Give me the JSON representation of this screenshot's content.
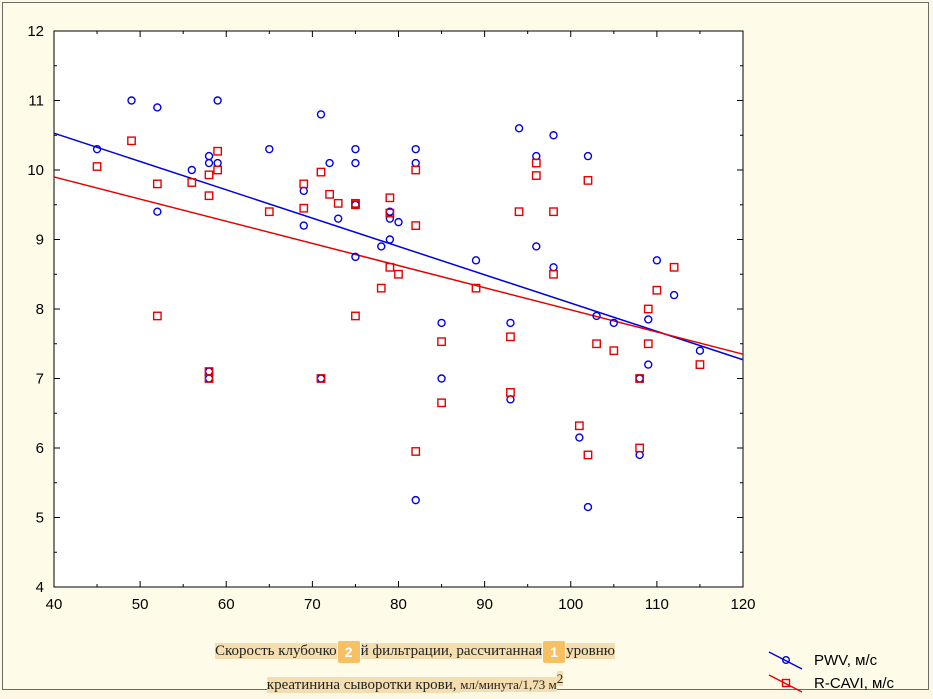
{
  "chart_data": {
    "type": "scatter",
    "xlim": [
      40,
      120
    ],
    "ylim": [
      4,
      12
    ],
    "x_ticks": [
      40,
      50,
      60,
      70,
      80,
      90,
      100,
      110,
      120
    ],
    "y_ticks": [
      4,
      5,
      6,
      7,
      8,
      9,
      10,
      11,
      12
    ],
    "grid": false,
    "legend_position": "bottom-right",
    "caption": {
      "part1": "Скорость клубочко",
      "part2": "й фильтрации, рассчитанная",
      "part3": "уровню",
      "line2_part1": "креатинина сыворотки крови, ",
      "line2_part2": "мл/минута/1,73 м",
      "line2_sup": "2"
    },
    "badges": [
      "2",
      "1"
    ],
    "series": [
      {
        "name": "PWV, м/с",
        "color": "#0000e6",
        "marker": "circle",
        "points": [
          [
            45,
            10.3
          ],
          [
            49,
            11.0
          ],
          [
            52,
            10.9
          ],
          [
            52,
            9.4
          ],
          [
            56,
            10.0
          ],
          [
            58,
            10.2
          ],
          [
            58,
            10.1
          ],
          [
            59,
            11.0
          ],
          [
            59,
            10.1
          ],
          [
            58,
            7.1
          ],
          [
            58,
            7.0
          ],
          [
            65,
            10.3
          ],
          [
            69,
            9.7
          ],
          [
            69,
            9.2
          ],
          [
            71,
            10.8
          ],
          [
            71,
            7.0
          ],
          [
            72,
            10.1
          ],
          [
            73,
            9.3
          ],
          [
            75,
            10.3
          ],
          [
            75,
            10.1
          ],
          [
            75,
            9.5
          ],
          [
            75,
            8.75
          ],
          [
            78,
            8.9
          ],
          [
            79,
            9.3
          ],
          [
            79,
            9.0
          ],
          [
            79,
            9.4
          ],
          [
            80,
            9.25
          ],
          [
            82,
            10.3
          ],
          [
            82,
            10.1
          ],
          [
            82,
            5.25
          ],
          [
            85,
            7.8
          ],
          [
            85,
            7.0
          ],
          [
            89,
            8.7
          ],
          [
            93,
            7.8
          ],
          [
            93,
            6.7
          ],
          [
            94,
            10.6
          ],
          [
            96,
            10.2
          ],
          [
            96,
            8.9
          ],
          [
            98,
            10.5
          ],
          [
            98,
            8.6
          ],
          [
            101,
            6.15
          ],
          [
            102,
            10.2
          ],
          [
            102,
            5.15
          ],
          [
            103,
            7.9
          ],
          [
            105,
            7.8
          ],
          [
            108,
            7.0
          ],
          [
            108,
            5.9
          ],
          [
            109,
            7.85
          ],
          [
            109,
            7.2
          ],
          [
            110,
            8.7
          ],
          [
            112,
            8.2
          ],
          [
            115,
            7.4
          ]
        ],
        "fit": [
          [
            40,
            10.53
          ],
          [
            120,
            7.27
          ]
        ]
      },
      {
        "name": "R-CAVI, м/с",
        "color": "#e60000",
        "marker": "square",
        "points": [
          [
            45,
            10.05
          ],
          [
            49,
            10.42
          ],
          [
            52,
            9.8
          ],
          [
            52,
            7.9
          ],
          [
            56,
            9.82
          ],
          [
            58,
            9.93
          ],
          [
            58,
            9.63
          ],
          [
            58,
            7.1
          ],
          [
            58,
            7.0
          ],
          [
            59,
            10.27
          ],
          [
            59,
            10.0
          ],
          [
            65,
            9.4
          ],
          [
            69,
            9.8
          ],
          [
            69,
            9.45
          ],
          [
            71,
            9.97
          ],
          [
            71,
            7.0
          ],
          [
            72,
            9.65
          ],
          [
            73,
            9.52
          ],
          [
            75,
            9.5
          ],
          [
            75,
            9.52
          ],
          [
            75,
            7.9
          ],
          [
            78,
            8.3
          ],
          [
            79,
            9.6
          ],
          [
            79,
            9.38
          ],
          [
            79,
            8.6
          ],
          [
            80,
            8.5
          ],
          [
            82,
            10.0
          ],
          [
            82,
            9.2
          ],
          [
            82,
            5.95
          ],
          [
            85,
            7.53
          ],
          [
            85,
            6.65
          ],
          [
            89,
            8.3
          ],
          [
            93,
            7.6
          ],
          [
            93,
            6.8
          ],
          [
            94,
            9.4
          ],
          [
            96,
            10.1
          ],
          [
            96,
            9.92
          ],
          [
            98,
            9.4
          ],
          [
            98,
            8.5
          ],
          [
            101,
            6.32
          ],
          [
            102,
            9.85
          ],
          [
            102,
            5.9
          ],
          [
            103,
            7.5
          ],
          [
            105,
            7.4
          ],
          [
            108,
            7.0
          ],
          [
            108,
            6.0
          ],
          [
            109,
            8.0
          ],
          [
            109,
            7.5
          ],
          [
            110,
            8.27
          ],
          [
            112,
            8.6
          ],
          [
            115,
            7.2
          ]
        ],
        "fit": [
          [
            40,
            9.9
          ],
          [
            120,
            7.35
          ]
        ]
      }
    ]
  }
}
